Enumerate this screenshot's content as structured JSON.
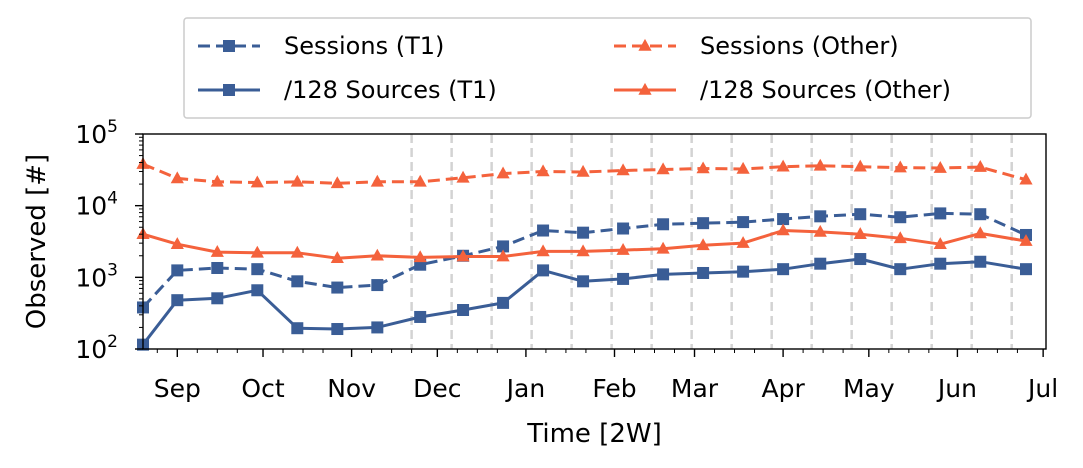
{
  "chart_data": {
    "type": "line",
    "xlabel": "Time [2W]",
    "ylabel": "Observed [#]",
    "yscale": "log",
    "ylim": [
      100,
      100000
    ],
    "y_ticks": [
      {
        "value": 100,
        "base": "10",
        "exp": "2"
      },
      {
        "value": 1000,
        "base": "10",
        "exp": "3"
      },
      {
        "value": 10000,
        "base": "10",
        "exp": "4"
      },
      {
        "value": 100000,
        "base": "10",
        "exp": "5"
      }
    ],
    "xlim": [
      "2022-08-20",
      "2023-07-02"
    ],
    "x_ticks": [
      {
        "date": "2022-09-01",
        "label": "Sep"
      },
      {
        "date": "2022-10-01",
        "label": "Oct"
      },
      {
        "date": "2022-11-01",
        "label": "Nov"
      },
      {
        "date": "2022-12-01",
        "label": "Dec"
      },
      {
        "date": "2023-01-01",
        "label": "Jan"
      },
      {
        "date": "2023-02-01",
        "label": "Feb"
      },
      {
        "date": "2023-03-01",
        "label": "Mar"
      },
      {
        "date": "2023-04-01",
        "label": "Apr"
      },
      {
        "date": "2023-05-01",
        "label": "May"
      },
      {
        "date": "2023-06-01",
        "label": "Jun"
      },
      {
        "date": "2023-07-01",
        "label": "Jul"
      }
    ],
    "grid": "vertical dashed lines from Dec to Jun",
    "grid_dates": [
      "2022-11-22",
      "2022-12-06",
      "2022-12-20",
      "2023-01-03",
      "2023-01-17",
      "2023-01-31",
      "2023-02-14",
      "2023-02-28",
      "2023-03-14",
      "2023-03-28",
      "2023-04-11",
      "2023-04-25",
      "2023-05-09",
      "2023-05-23",
      "2023-06-06",
      "2023-06-20"
    ],
    "x": [
      "2022-08-20",
      "2022-09-01",
      "2022-09-15",
      "2022-09-29",
      "2022-10-13",
      "2022-10-27",
      "2022-11-10",
      "2022-11-25",
      "2022-12-10",
      "2022-12-24",
      "2023-01-07",
      "2023-01-21",
      "2023-02-04",
      "2023-02-18",
      "2023-03-04",
      "2023-03-18",
      "2023-04-01",
      "2023-04-14",
      "2023-04-28",
      "2023-05-12",
      "2023-05-26",
      "2023-06-09",
      "2023-06-25"
    ],
    "legend_position": "above plot, two columns",
    "series": [
      {
        "name": "Sessions (T1)",
        "color": "#3a5d96",
        "line": "dashed",
        "marker": "square",
        "values": [
          380,
          1250,
          1350,
          1300,
          880,
          720,
          780,
          1500,
          2000,
          2700,
          4500,
          4200,
          4800,
          5500,
          5700,
          5900,
          6500,
          7100,
          7600,
          6900,
          7800,
          7600,
          3900
        ]
      },
      {
        "name": "/128 Sources (T1)",
        "color": "#3a5d96",
        "line": "solid",
        "marker": "square",
        "values": [
          115,
          480,
          510,
          660,
          195,
          190,
          200,
          280,
          350,
          440,
          1250,
          880,
          950,
          1100,
          1150,
          1200,
          1300,
          1550,
          1800,
          1300,
          1550,
          1650,
          1300
        ]
      },
      {
        "name": "Sessions (Other)",
        "color": "#f4623c",
        "line": "dashed",
        "marker": "triangle",
        "values": [
          38000,
          24000,
          21500,
          21000,
          21500,
          20500,
          21500,
          21500,
          24500,
          28000,
          30000,
          29500,
          31000,
          32000,
          33000,
          32500,
          35000,
          36000,
          35000,
          34000,
          33500,
          34500,
          23000
        ]
      },
      {
        "name": "/128 Sources (Other)",
        "color": "#f4623c",
        "line": "solid",
        "marker": "triangle",
        "values": [
          4000,
          2900,
          2250,
          2200,
          2200,
          1850,
          2000,
          1900,
          1950,
          1950,
          2300,
          2300,
          2400,
          2500,
          2800,
          3000,
          4500,
          4300,
          4000,
          3500,
          2900,
          4100,
          3200
        ]
      }
    ]
  }
}
